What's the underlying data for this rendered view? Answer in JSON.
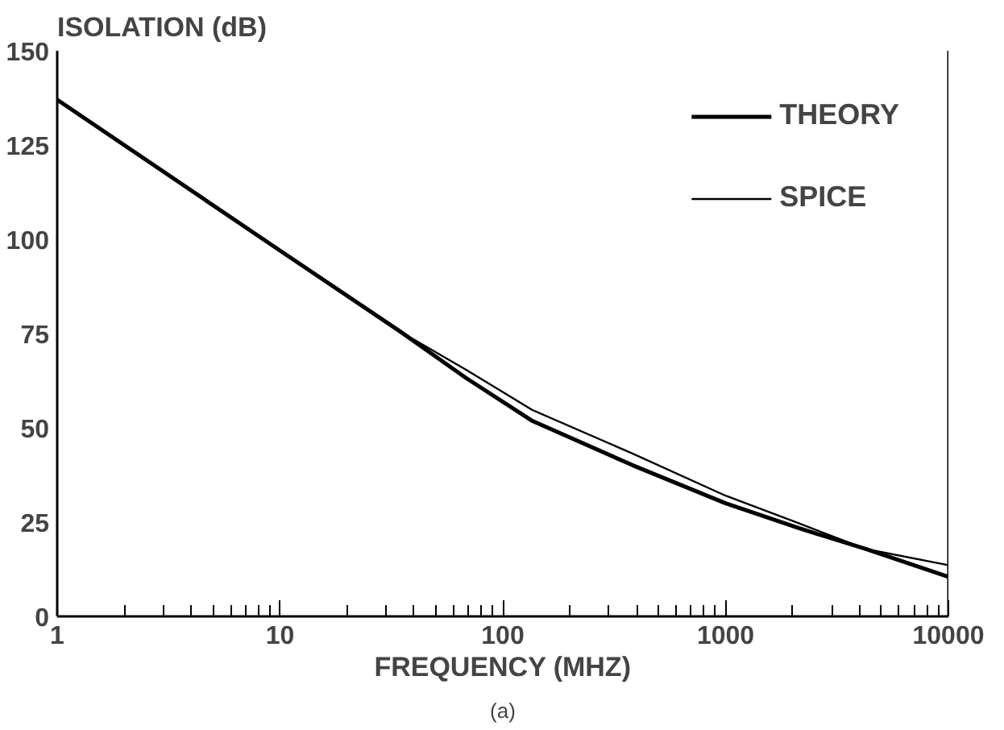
{
  "chart_data": {
    "type": "line",
    "ylabel": "ISOLATION (dB)",
    "xlabel": "FREQUENCY (MHZ)",
    "log": "x",
    "xlim": [
      1,
      10000
    ],
    "xticks": [
      1,
      10,
      100,
      1000,
      10000
    ],
    "ylim": [
      0,
      150
    ],
    "yticks": [
      0,
      25,
      50,
      75,
      100,
      125,
      150
    ],
    "legend": "top right",
    "grid": false,
    "series": [
      {
        "name": "THEORY",
        "color": "#000000",
        "x": [
          1,
          10,
          34.5,
          68.5,
          136,
          382,
          1000,
          2130,
          4236,
          10000
        ],
        "values": [
          137,
          97,
          75.6,
          63.2,
          51.8,
          40.1,
          30,
          23.4,
          17.9,
          10.5
        ]
      },
      {
        "name": "SPICE",
        "color": "#000000",
        "x": [
          1,
          10,
          34.5,
          68.5,
          136,
          382,
          1000,
          2130,
          4236,
          10000
        ],
        "values": [
          137,
          97,
          75.6,
          65.4,
          54.7,
          43.2,
          32,
          24.7,
          17.9,
          13.6
        ]
      }
    ],
    "annotations": [
      "(a)"
    ]
  }
}
